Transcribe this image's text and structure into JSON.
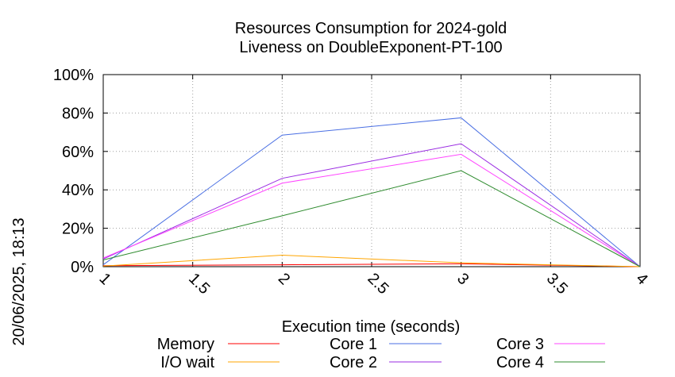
{
  "chart_data": {
    "type": "line",
    "title": [
      "Resources Consumption for 2024-gold",
      "Liveness on DoubleExponent-PT-100"
    ],
    "xlabel": "Execution time (seconds)",
    "ylabel": "",
    "side_label": "20/06/2025, 18:13",
    "xlim": [
      1,
      4
    ],
    "ylim": [
      0,
      100
    ],
    "x_ticks": [
      1,
      1.5,
      2,
      2.5,
      3,
      3.5,
      4
    ],
    "x_tick_labels": [
      "1",
      "1.5",
      "2",
      "2.5",
      "3",
      "3.5",
      "4"
    ],
    "y_ticks": [
      0,
      20,
      40,
      60,
      80,
      100
    ],
    "y_tick_labels": [
      "0%",
      "20%",
      "40%",
      "60%",
      "80%",
      "100%"
    ],
    "grid": true,
    "legend_position": "bottom",
    "x": [
      1,
      2,
      3,
      4
    ],
    "series": [
      {
        "name": "Memory",
        "color": "#ff0000",
        "values": [
          0.5,
          1.0,
          1.5,
          0
        ]
      },
      {
        "name": "I/O wait",
        "color": "#ffa500",
        "values": [
          0.3,
          6.0,
          2.0,
          0
        ]
      },
      {
        "name": "Core 1",
        "color": "#4a6fe3",
        "values": [
          1.0,
          68.5,
          77.5,
          0
        ]
      },
      {
        "name": "Core 2",
        "color": "#9a2be2",
        "values": [
          4.0,
          46.0,
          64.0,
          0
        ]
      },
      {
        "name": "Core 3",
        "color": "#ff44ff",
        "values": [
          4.5,
          43.5,
          58.5,
          0
        ]
      },
      {
        "name": "Core 4",
        "color": "#2e8b2e",
        "values": [
          3.5,
          26.5,
          50.0,
          0
        ]
      }
    ]
  }
}
